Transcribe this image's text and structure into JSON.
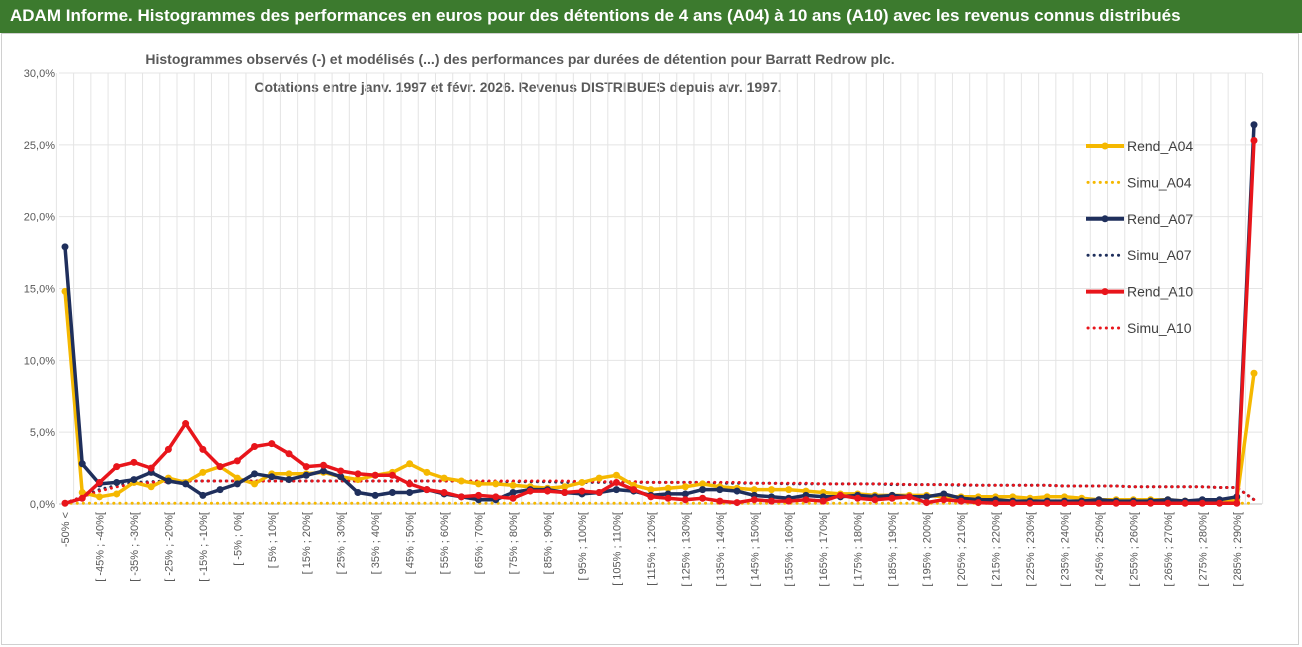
{
  "header": {
    "title": "ADAM Informe. Histogrammes des performances en euros pour des détentions de 4 ans (A04) à 10 ans (A10) avec les revenus connus distribués"
  },
  "chart_data": {
    "type": "line",
    "title": "Histogrammes observés (-) et modélisés (...) des performances par durées de détention pour Barratt Redrow plc.",
    "subtitle": "Cotations entre janv. 1997 et févr. 2026. Revenus DISTRIBUES depuis avr. 1997.",
    "xlabel": "",
    "ylabel": "",
    "ylim": [
      0,
      30
    ],
    "yticks": [
      "0,0%",
      "5,0%",
      "10,0%",
      "15,0%",
      "20,0%",
      "25,0%",
      "30,0%"
    ],
    "grid": true,
    "legend_position": "right",
    "categories": [
      "-50% <",
      "[-50% ; -45%[",
      "[ -45% ; -40%[",
      "[-40% ; -35%[",
      "[ -35% ; -30%[",
      "[-30% ; -25%[",
      "[ -25% ; -20%[",
      "[-20% ; -15%[",
      "[ -15% ; -10%[",
      "[-10% ; -5%[",
      "[ -5% ; 0%[",
      "[0% ; 5%[",
      "[ 5% ; 10%[",
      "[10% ; 15%[",
      "[ 15% ; 20%[",
      "[20% ; 25%[",
      "[ 25% ; 30%[",
      "[30% ; 35%[",
      "[ 35% ; 40%[",
      "[40% ; 45%[",
      "[ 45% ; 50%[",
      "[50% ; 55%[",
      "[ 55% ; 60%[",
      "[60% ; 65%[",
      "[ 65% ; 70%[",
      "[70% ; 75%[",
      "[ 75% ; 80%[",
      "[80% ; 85%[",
      "[ 85% ; 90%[",
      "[90% ; 95%[",
      "[ 95% ; 100%[",
      "[100% ; 105%[",
      "[ 105% ; 110%[",
      "[110% ; 115%[",
      "[ 115% ; 120%[",
      "[120% ; 125%[",
      "[ 125% ; 130%[",
      "[130% ; 135%[",
      "[ 135% ; 140%[",
      "[140% ; 145%[",
      "[ 145% ; 150%[",
      "[150% ; 155%[",
      "[ 155% ; 160%[",
      "[160% ; 165%[",
      "[ 165% ; 170%[",
      "[170% ; 175%[",
      "[ 175% ; 180%[",
      "[180% ; 185%[",
      "[ 185% ; 190%[",
      "[190% ; 195%[",
      "[ 195% ; 200%[",
      "[200% ; 205%[",
      "[ 205% ; 210%[",
      "[210% ; 215%[",
      "[ 215% ; 220%[",
      "[220% ; 225%[",
      "[ 225% ; 230%[",
      "[230% ; 235%[",
      "[ 235% ; 240%[",
      "[240% ; 245%[",
      "[ 245% ; 250%[",
      "[250% ; 255%[",
      "[ 255% ; 260%[",
      "[260% ; 265%[",
      "[ 265% ; 270%[",
      "[270% ; 275%[",
      "[ 275% ; 280%[",
      "[280% ; 285%[",
      "[ 285% ; 290%[",
      "290% >"
    ],
    "series": [
      {
        "name": "Rend_A04",
        "color": "#f5b800",
        "style": "solid",
        "values": [
          14.8,
          0.8,
          0.5,
          0.7,
          1.5,
          1.2,
          1.8,
          1.5,
          2.2,
          2.6,
          1.8,
          1.4,
          2.1,
          2.1,
          2.1,
          2.2,
          1.9,
          1.7,
          2.0,
          2.2,
          2.8,
          2.2,
          1.8,
          1.6,
          1.4,
          1.4,
          1.3,
          1.2,
          1.1,
          1.2,
          1.5,
          1.8,
          2.0,
          1.3,
          1.0,
          1.1,
          1.2,
          1.4,
          1.2,
          1.1,
          1.0,
          1.0,
          1.0,
          0.9,
          0.8,
          0.7,
          0.7,
          0.6,
          0.6,
          0.6,
          0.6,
          0.5,
          0.5,
          0.5,
          0.5,
          0.5,
          0.4,
          0.5,
          0.5,
          0.4,
          0.3,
          0.3,
          0.3,
          0.3,
          0.3,
          0.2,
          0.2,
          0.2,
          0.3,
          9.1
        ]
      },
      {
        "name": "Simu_A04",
        "color": "#f5b800",
        "style": "dotted",
        "values": [
          0.05,
          0.05,
          0.05,
          0.05,
          0.05,
          0.05,
          0.05,
          0.05,
          0.05,
          0.05,
          0.05,
          0.05,
          0.05,
          0.05,
          0.05,
          0.05,
          0.05,
          0.05,
          0.05,
          0.05,
          0.05,
          0.05,
          0.05,
          0.05,
          0.05,
          0.05,
          0.05,
          0.05,
          0.05,
          0.05,
          0.05,
          0.05,
          0.05,
          0.05,
          0.05,
          0.05,
          0.05,
          0.05,
          0.05,
          0.05,
          0.05,
          0.05,
          0.05,
          0.05,
          0.05,
          0.05,
          0.05,
          0.05,
          0.05,
          0.05,
          0.05,
          0.05,
          0.05,
          0.05,
          0.05,
          0.05,
          0.05,
          0.05,
          0.05,
          0.05,
          0.05,
          0.05,
          0.05,
          0.05,
          0.05,
          0.05,
          0.05,
          0.05,
          0.05,
          0.05
        ]
      },
      {
        "name": "Rend_A07",
        "color": "#1f2f5c",
        "style": "solid",
        "values": [
          17.9,
          2.8,
          1.4,
          1.5,
          1.7,
          2.2,
          1.6,
          1.4,
          0.6,
          1.0,
          1.4,
          2.1,
          1.9,
          1.7,
          2.0,
          2.3,
          1.9,
          0.8,
          0.6,
          0.8,
          0.8,
          1.0,
          0.7,
          0.5,
          0.3,
          0.3,
          0.8,
          1.0,
          1.0,
          0.8,
          0.7,
          0.8,
          1.0,
          0.9,
          0.6,
          0.7,
          0.7,
          1.0,
          1.0,
          0.9,
          0.6,
          0.5,
          0.4,
          0.6,
          0.5,
          0.5,
          0.6,
          0.5,
          0.6,
          0.5,
          0.5,
          0.7,
          0.4,
          0.3,
          0.3,
          0.2,
          0.2,
          0.2,
          0.2,
          0.2,
          0.3,
          0.2,
          0.2,
          0.2,
          0.3,
          0.2,
          0.3,
          0.3,
          0.5,
          26.4
        ]
      },
      {
        "name": "Simu_A07",
        "color": "#1f2f5c",
        "style": "dotted",
        "values": [
          0.05,
          0.5,
          1.0,
          1.3,
          1.5,
          1.55,
          1.6,
          1.6,
          1.6,
          1.6,
          1.6,
          1.6,
          1.6,
          1.6,
          1.6,
          1.6,
          1.6,
          1.6,
          1.6,
          1.6,
          1.6,
          1.6,
          1.6,
          1.6,
          1.55,
          1.55,
          1.55,
          1.55,
          1.55,
          1.5,
          1.5,
          1.5,
          1.5,
          1.5,
          1.5,
          1.5,
          1.5,
          1.5,
          1.45,
          1.45,
          1.45,
          1.45,
          1.4,
          1.4,
          1.4,
          1.4,
          1.4,
          1.4,
          1.35,
          1.35,
          1.35,
          1.35,
          1.3,
          1.3,
          1.3,
          1.3,
          1.3,
          1.3,
          1.25,
          1.25,
          1.25,
          1.25,
          1.2,
          1.2,
          1.2,
          1.2,
          1.2,
          1.15,
          1.15,
          0.3
        ]
      },
      {
        "name": "Rend_A10",
        "color": "#e8151b",
        "style": "solid",
        "values": [
          0.05,
          0.4,
          1.5,
          2.6,
          2.9,
          2.5,
          3.8,
          5.6,
          3.8,
          2.6,
          3.0,
          4.0,
          4.2,
          3.5,
          2.6,
          2.7,
          2.3,
          2.1,
          2.0,
          2.0,
          1.4,
          1.0,
          0.8,
          0.5,
          0.6,
          0.5,
          0.4,
          0.9,
          0.9,
          0.8,
          0.9,
          0.8,
          1.5,
          1.0,
          0.5,
          0.4,
          0.3,
          0.4,
          0.2,
          0.1,
          0.3,
          0.2,
          0.2,
          0.3,
          0.2,
          0.6,
          0.4,
          0.3,
          0.4,
          0.5,
          0.1,
          0.3,
          0.2,
          0.1,
          0.05,
          0.05,
          0.05,
          0.05,
          0.05,
          0.05,
          0.05,
          0.05,
          0.05,
          0.05,
          0.05,
          0.05,
          0.05,
          0.05,
          0.05,
          25.3
        ]
      },
      {
        "name": "Simu_A10",
        "color": "#e8151b",
        "style": "dotted",
        "values": [
          0.05,
          0.5,
          0.9,
          1.2,
          1.4,
          1.5,
          1.55,
          1.6,
          1.6,
          1.6,
          1.6,
          1.6,
          1.6,
          1.6,
          1.6,
          1.6,
          1.6,
          1.6,
          1.6,
          1.6,
          1.6,
          1.6,
          1.6,
          1.6,
          1.6,
          1.6,
          1.6,
          1.6,
          1.6,
          1.6,
          1.55,
          1.55,
          1.55,
          1.55,
          1.5,
          1.5,
          1.5,
          1.5,
          1.5,
          1.5,
          1.45,
          1.45,
          1.45,
          1.45,
          1.4,
          1.4,
          1.4,
          1.4,
          1.4,
          1.35,
          1.35,
          1.35,
          1.35,
          1.3,
          1.3,
          1.3,
          1.3,
          1.3,
          1.25,
          1.25,
          1.25,
          1.25,
          1.2,
          1.2,
          1.2,
          1.2,
          1.2,
          1.15,
          1.15,
          0.3
        ]
      }
    ]
  }
}
